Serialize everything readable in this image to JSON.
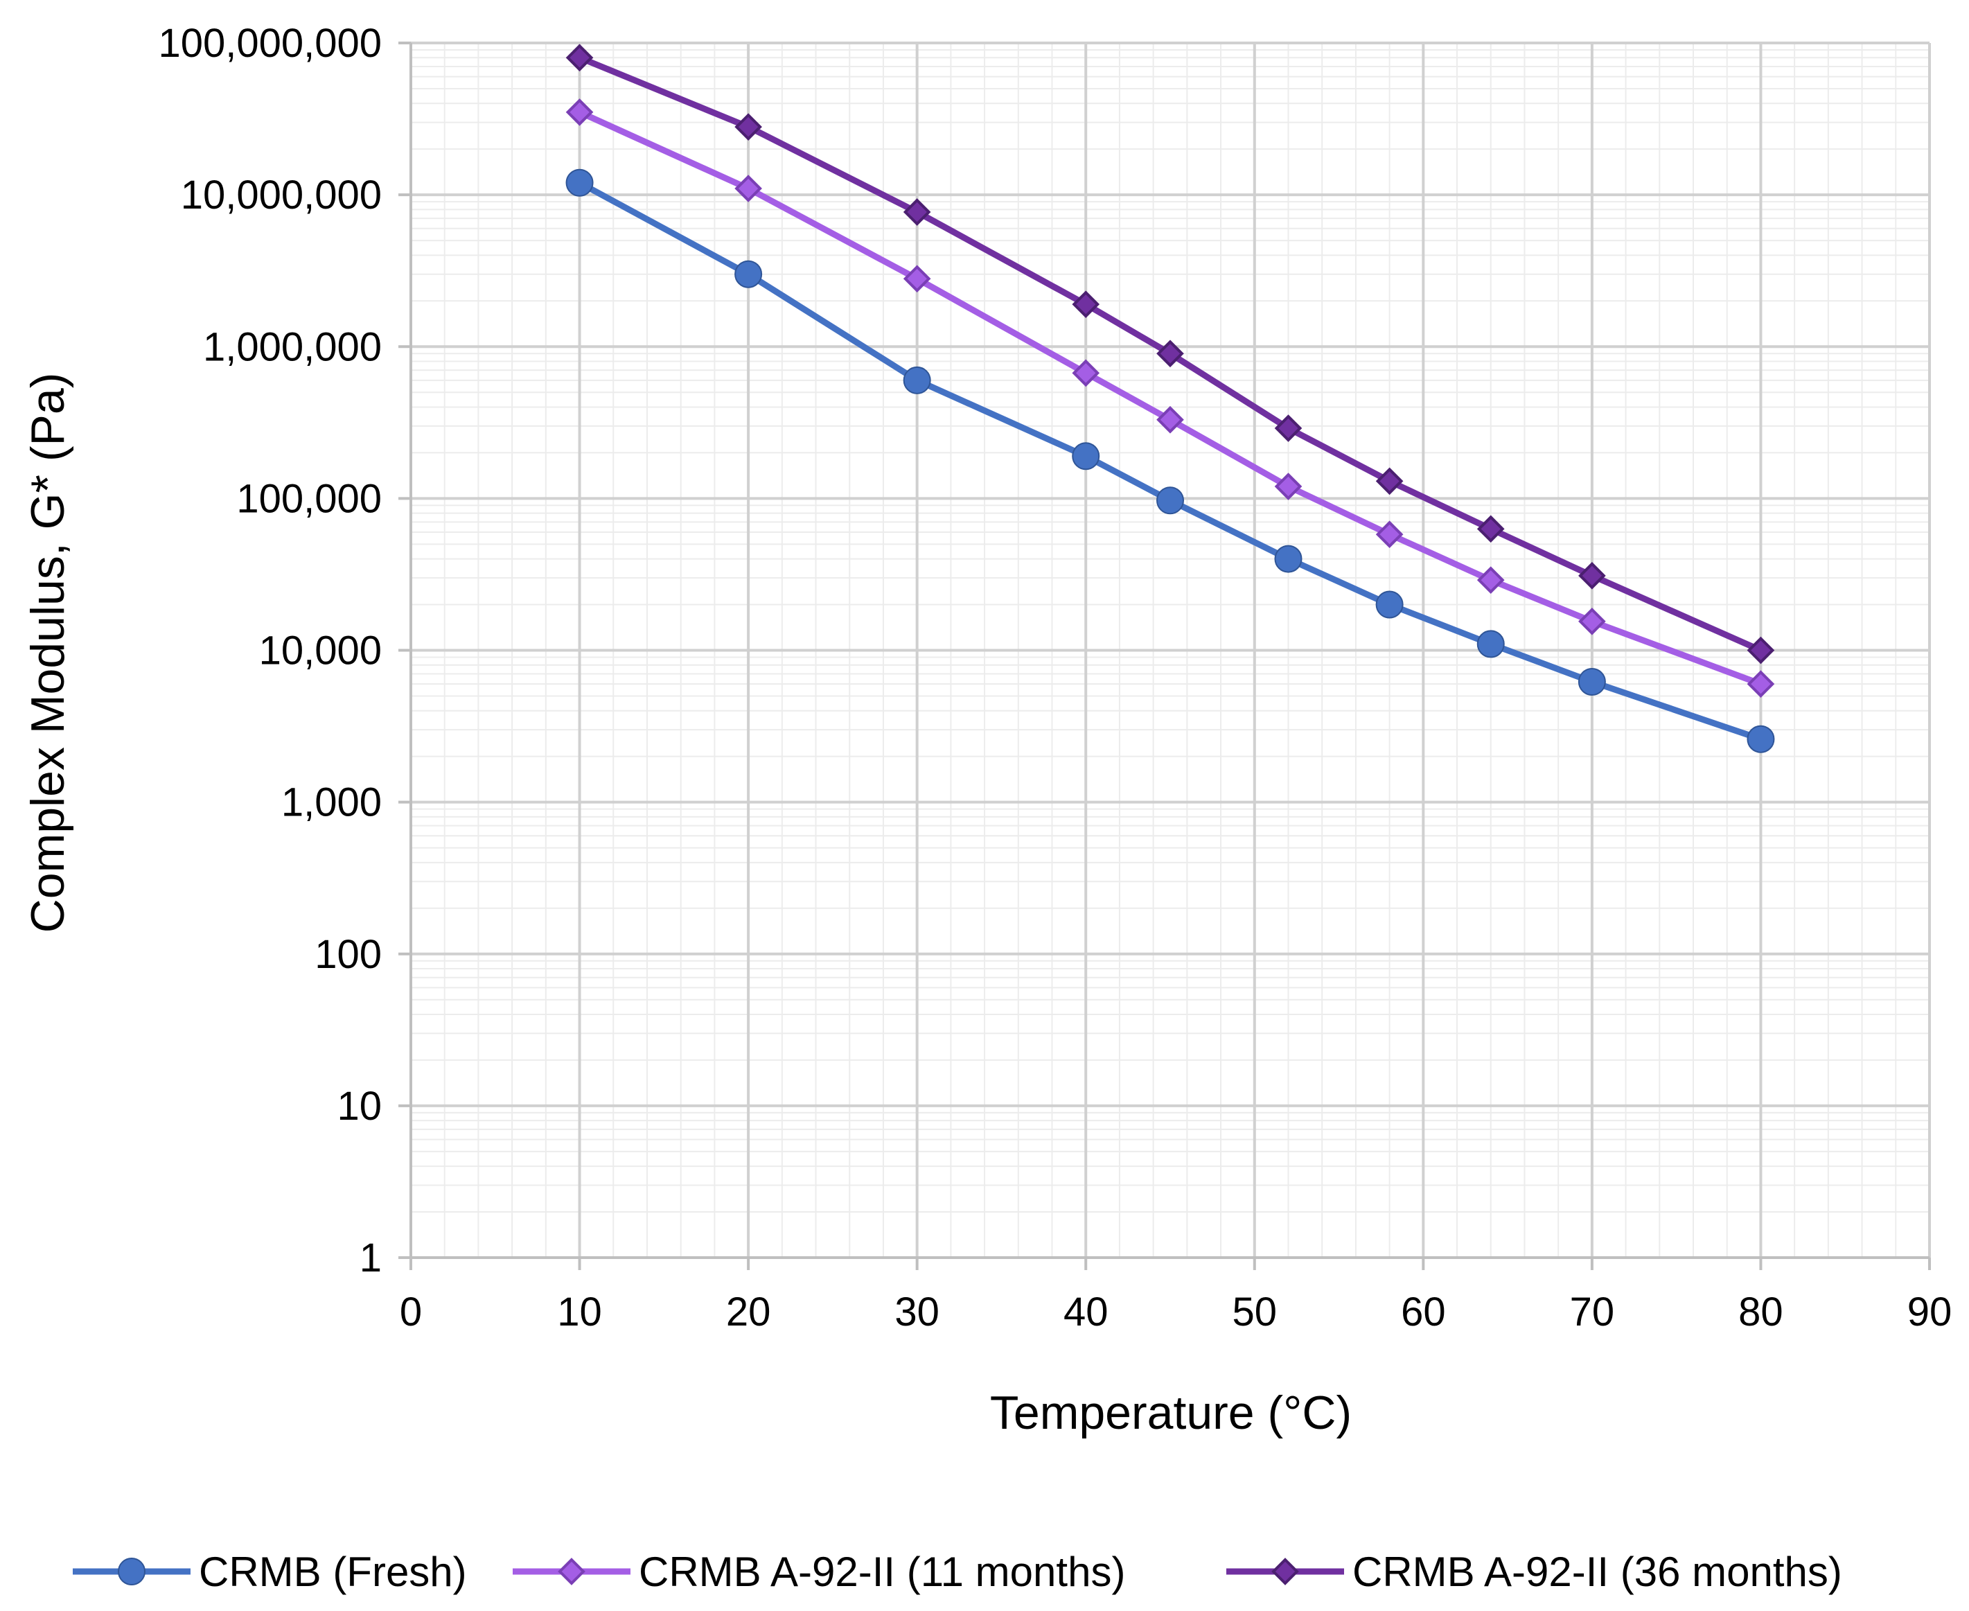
{
  "chart_data": {
    "type": "line",
    "title": "",
    "xlabel": "Temperature (°C)",
    "ylabel": "Complex Modulus, G* (Pa)",
    "xlim": [
      0,
      90
    ],
    "ylim": [
      1,
      100000000
    ],
    "yscale": "log",
    "grid": true,
    "legend_position": "bottom",
    "x_ticks": [
      "0",
      "10",
      "20",
      "30",
      "40",
      "50",
      "60",
      "70",
      "80",
      "90"
    ],
    "y_ticks": [
      "1",
      "10",
      "100",
      "1,000",
      "10,000",
      "100,000",
      "1,000,000",
      "10,000,000",
      "100,000,000"
    ],
    "x": [
      10,
      20,
      30,
      40,
      45,
      52,
      58,
      64,
      70,
      80
    ],
    "series": [
      {
        "name": "CRMB (Fresh)",
        "color": "#4472C4",
        "marker": "circle",
        "values": [
          12000000,
          3000000,
          600000,
          190000,
          97000,
          40000,
          20000,
          11000,
          6200,
          2600
        ]
      },
      {
        "name": "CRMB A-92-II  (11 months)",
        "color": "#A45EE5",
        "marker": "diamond",
        "values": [
          35000000,
          11000000,
          2800000,
          670000,
          330000,
          120000,
          58000,
          29000,
          15500,
          6000
        ]
      },
      {
        "name": "CRMB A-92-II  (36 months)",
        "color": "#7030A0",
        "marker": "diamond",
        "values": [
          80000000,
          28000000,
          7700000,
          1900000,
          900000,
          290000,
          130000,
          63000,
          31000,
          10000
        ]
      }
    ]
  }
}
